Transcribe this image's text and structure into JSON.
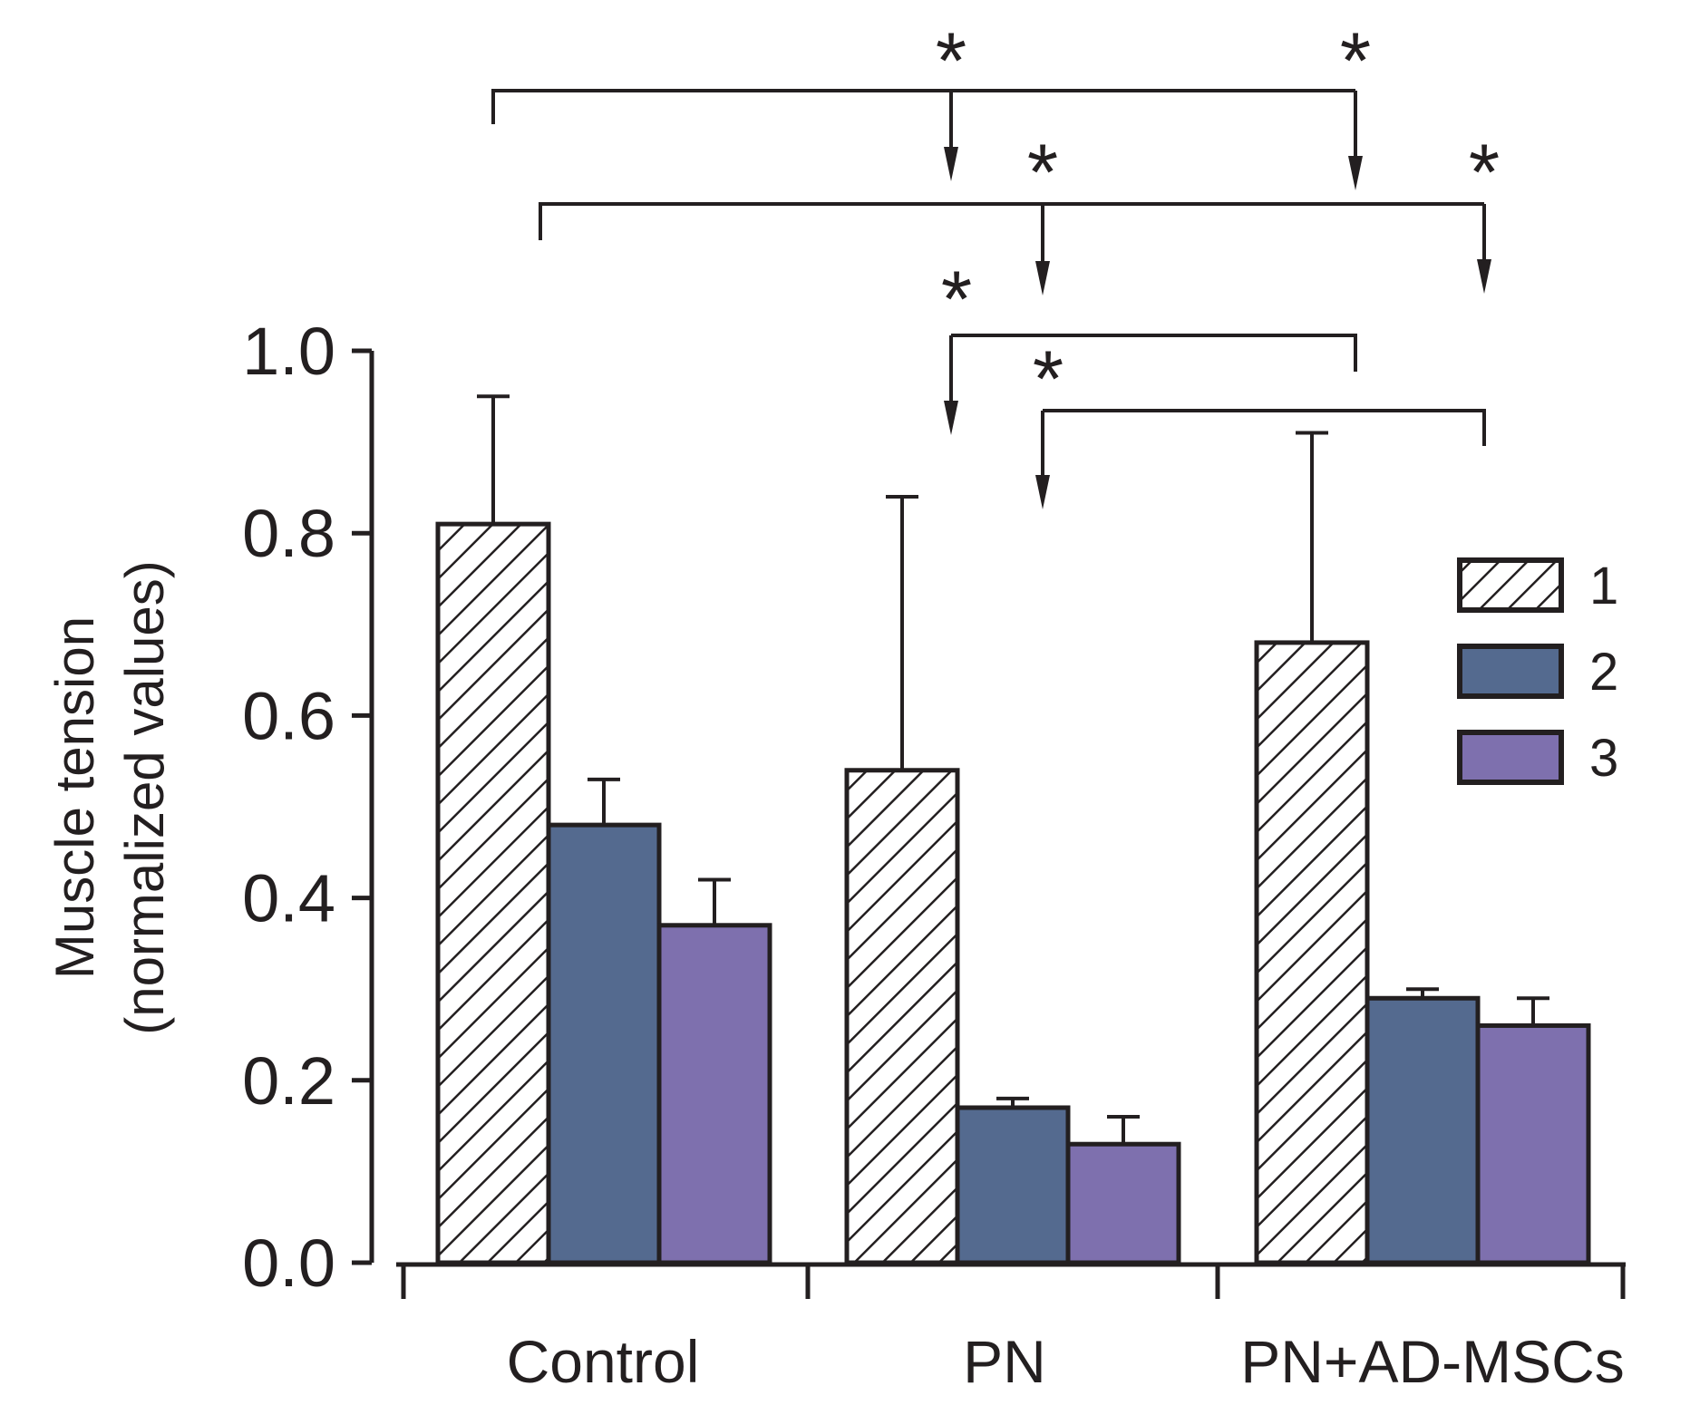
{
  "chart_data": {
    "type": "bar",
    "title": "",
    "xlabel": "",
    "ylabel_lines": [
      "Muscle tension",
      "(normalized values)"
    ],
    "categories": [
      "Control",
      "PN",
      "PN+AD-MSCs"
    ],
    "ylim": [
      0,
      1.0
    ],
    "yticks": [
      "0.0",
      "0.2",
      "0.4",
      "0.6",
      "0.8",
      "1.0"
    ],
    "grid": false,
    "legend_position": "right",
    "series": [
      {
        "name": "1",
        "pattern": "hatched",
        "color": "#ffffff",
        "values": [
          0.81,
          0.54,
          0.68
        ],
        "errors": [
          0.14,
          0.3,
          0.23
        ]
      },
      {
        "name": "2",
        "pattern": "solid",
        "color": "#546a8f",
        "values": [
          0.48,
          0.17,
          0.29
        ],
        "errors": [
          0.05,
          0.01,
          0.01
        ]
      },
      {
        "name": "3",
        "pattern": "solid",
        "color": "#7e70ae",
        "values": [
          0.37,
          0.13,
          0.26
        ],
        "errors": [
          0.05,
          0.03,
          0.03
        ]
      }
    ],
    "significance": [
      {
        "from": "Control-1",
        "to": [
          "PN-1",
          "PN+AD-MSCs-1"
        ],
        "label": "*"
      },
      {
        "from": "Control-2",
        "to": [
          "PN-2",
          "PN+AD-MSCs-2"
        ],
        "label": "*"
      },
      {
        "from": "PN+AD-MSCs-1",
        "to": [
          "PN-1"
        ],
        "label": "*"
      },
      {
        "from": "PN+AD-MSCs-2",
        "to": [
          "PN-2"
        ],
        "label": "*"
      }
    ]
  }
}
